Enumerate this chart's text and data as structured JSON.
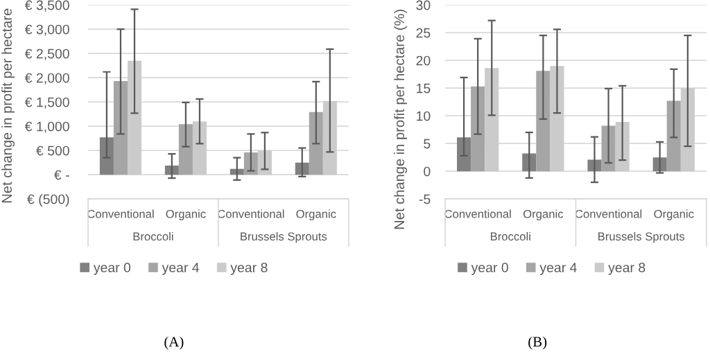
{
  "chart_data": [
    {
      "type": "bar",
      "title": "(A)",
      "ylabel": "Net change in profit per hectare",
      "categories": [
        "Conventional",
        "Organic",
        "Conventional",
        "Organic"
      ],
      "annotations": [
        "Broccoli",
        "Brussels Sprouts"
      ],
      "series": [
        {
          "name": "year 0",
          "color": "#808080",
          "values": [
            770,
            190,
            120,
            250
          ],
          "errors": [
            [
              350,
              2120
            ],
            [
              -70,
              430
            ],
            [
              -110,
              350
            ],
            [
              -40,
              550
            ]
          ]
        },
        {
          "name": "year 4",
          "color": "#a5a5a5",
          "values": [
            1930,
            1040,
            460,
            1290
          ],
          "errors": [
            [
              840,
              3000
            ],
            [
              580,
              1490
            ],
            [
              80,
              840
            ],
            [
              640,
              1920
            ]
          ]
        },
        {
          "name": "year 8",
          "color": "#cbcbcb",
          "values": [
            2350,
            1100,
            500,
            1520
          ],
          "errors": [
            [
              1270,
              3410
            ],
            [
              640,
              1560
            ],
            [
              110,
              870
            ],
            [
              470,
              2590
            ]
          ]
        }
      ],
      "ylim": [
        -500,
        3500
      ],
      "yticks": [
        {
          "value": -500,
          "label": "€ (500)"
        },
        {
          "value": 0,
          "label": "€ -"
        },
        {
          "value": 500,
          "label": "€ 500"
        },
        {
          "value": 1000,
          "label": "€ 1,000"
        },
        {
          "value": 1500,
          "label": "€ 1,500"
        },
        {
          "value": 2000,
          "label": "€ 2,000"
        },
        {
          "value": 2500,
          "label": "€ 2,500"
        },
        {
          "value": 3000,
          "label": "€ 3,000"
        },
        {
          "value": 3500,
          "label": "€ 3,500"
        }
      ],
      "grid": "y",
      "legend": "bottom"
    },
    {
      "type": "bar",
      "title": "(B)",
      "ylabel": "Net change in profit per hectare (%)",
      "categories": [
        "Conventional",
        "Organic",
        "Conventional",
        "Organic"
      ],
      "annotations": [
        "Broccoli",
        "Brussels Sprouts"
      ],
      "series": [
        {
          "name": "year 0",
          "color": "#808080",
          "values": [
            6.1,
            3.2,
            2.1,
            2.5
          ],
          "errors": [
            [
              2.8,
              16.9
            ],
            [
              -1.2,
              7.0
            ],
            [
              -2.0,
              6.2
            ],
            [
              -0.3,
              5.3
            ]
          ]
        },
        {
          "name": "year 4",
          "color": "#a5a5a5",
          "values": [
            15.3,
            18.1,
            8.2,
            12.7
          ],
          "errors": [
            [
              6.7,
              23.9
            ],
            [
              9.4,
              24.5
            ],
            [
              1.5,
              14.9
            ],
            [
              6.1,
              18.4
            ]
          ]
        },
        {
          "name": "year 8",
          "color": "#cbcbcb",
          "values": [
            18.6,
            19.0,
            8.9,
            15.0
          ],
          "errors": [
            [
              10.1,
              27.2
            ],
            [
              10.5,
              25.6
            ],
            [
              2.0,
              15.4
            ],
            [
              4.5,
              24.5
            ]
          ]
        }
      ],
      "ylim": [
        -5,
        30
      ],
      "yticks": [
        -5,
        0,
        5,
        10,
        15,
        20,
        25,
        30
      ],
      "grid": "y",
      "legend": "bottom"
    }
  ]
}
